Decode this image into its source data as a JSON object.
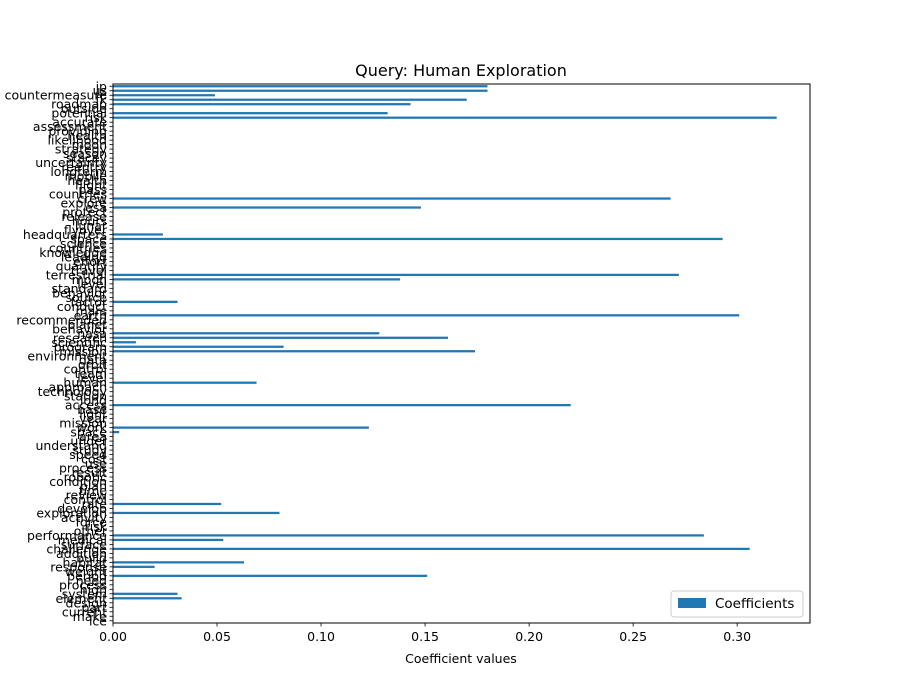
{
  "chart_data": {
    "type": "bar",
    "orientation": "horizontal",
    "title": "Query: Human Exploration",
    "xlabel": "Coefficient values",
    "ylabel": "",
    "xlim": [
      0,
      0.335
    ],
    "xticks": [
      0.0,
      0.05,
      0.1,
      0.15,
      0.2,
      0.25,
      0.3
    ],
    "xtick_labels": [
      "0.00",
      "0.05",
      "0.10",
      "0.15",
      "0.20",
      "0.25",
      "0.30"
    ],
    "grid": false,
    "legend": {
      "placement": "lower-right",
      "entries": [
        "Coefficients"
      ]
    },
    "bar_color": "#1f77b4",
    "categories": [
      "jp",
      "us",
      "countermeasure",
      "fk",
      "roadmap",
      "outside",
      "potential",
      "risk",
      "accurate",
      "assessment",
      "providing",
      "health",
      "likelihood",
      "moon",
      "strategy",
      "season",
      "stacey",
      "uncertainty",
      "reentry",
      "longterm",
      "mobile",
      "health",
      "flight",
      "pass",
      "countries",
      "crew",
      "explore",
      "esa",
      "protect",
      "release",
      "hours",
      "lunar",
      "flyover",
      "headquarters",
      "space",
      "science",
      "countries",
      "knowledge",
      "leading",
      "effort",
      "quantify",
      "travel",
      "terrestrial",
      "moon",
      "level",
      "standard",
      "behavior",
      "source",
      "factor",
      "conduct",
      "mars",
      "earth",
      "recommended",
      "planet",
      "behavior",
      "nasa",
      "research",
      "scientific",
      "program",
      "mission",
      "environment",
      "data",
      "orbit",
      "control",
      "team",
      "level",
      "human",
      "approach",
      "technology",
      "station",
      "long",
      "access",
      "base",
      "light",
      "year",
      "mission",
      "work",
      "space",
      "area",
      "under",
      "understand",
      "study",
      "speed",
      "cost",
      "use",
      "process",
      "result",
      "robotic",
      "condition",
      "plan",
      "time",
      "review",
      "control",
      "rate",
      "develop",
      "exploration",
      "activity",
      "force",
      "risk",
      "other",
      "performance",
      "medical",
      "surface",
      "challenge",
      "addition",
      "build",
      "habitat",
      "response",
      "weight",
      "period",
      "need",
      "process",
      "high",
      "system",
      "element",
      "design",
      "part",
      "current",
      "make",
      "ice"
    ],
    "values": [
      0.18,
      0.18,
      0.049,
      0.17,
      0.143,
      0.0,
      0.132,
      0.319,
      0.0,
      0.0,
      0.0,
      0.0,
      0.0,
      0.0,
      0.0,
      0.0,
      0.0,
      0.0,
      0.0,
      0.0,
      0.0,
      0.0,
      0.0,
      0.0,
      0.0,
      0.268,
      0.0,
      0.148,
      0.0,
      0.0,
      0.0,
      0.0,
      0.0,
      0.024,
      0.293,
      0.0,
      0.0,
      0.0,
      0.0,
      0.0,
      0.0,
      0.0,
      0.272,
      0.138,
      0.0,
      0.0,
      0.0,
      0.0,
      0.031,
      0.0,
      0.0,
      0.301,
      0.0,
      0.0,
      0.0,
      0.128,
      0.161,
      0.011,
      0.082,
      0.174,
      0.0,
      0.0,
      0.0,
      0.0,
      0.0,
      0.0,
      0.069,
      0.0,
      0.0,
      0.0,
      0.0,
      0.22,
      0.0,
      0.0,
      0.0,
      0.0,
      0.123,
      0.003,
      0.0,
      0.0,
      0.0,
      0.0,
      0.0,
      0.0,
      0.0,
      0.0,
      0.0,
      0.0,
      0.0,
      0.0,
      0.0,
      0.0,
      0.0,
      0.052,
      0.0,
      0.08,
      0.0,
      0.0,
      0.0,
      0.0,
      0.284,
      0.053,
      0.0,
      0.306,
      0.0,
      0.0,
      0.063,
      0.02,
      0.0,
      0.151,
      0.0,
      0.0,
      0.0,
      0.031,
      0.033,
      0.0,
      0.0,
      0.0,
      0.0,
      0.0
    ]
  }
}
